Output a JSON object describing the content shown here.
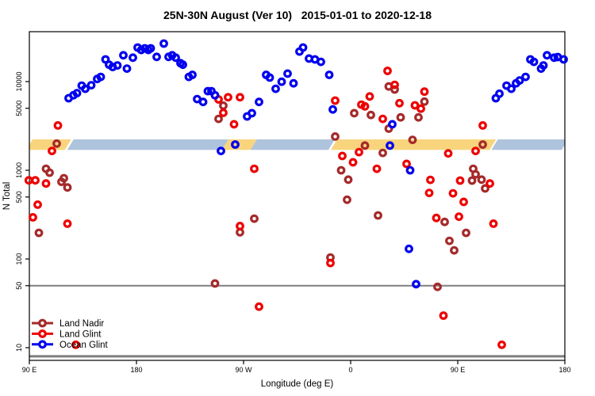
{
  "chart_data": {
    "type": "scatter",
    "title": "25N-30N August (Ver 10)   2015-01-01 to 2020-12-18",
    "xlabel": "Longitude (deg E)",
    "ylabel": "N Total",
    "x_axis": {
      "range": [
        90,
        540
      ],
      "ticks": [
        90,
        180,
        270,
        360,
        450,
        540
      ],
      "tick_labels": [
        "90 E",
        "180",
        "90 W",
        "0",
        "90 E",
        "180"
      ]
    },
    "y_axis": {
      "scale": "log10",
      "range": [
        7.5,
        36000
      ],
      "ticks": [
        10,
        50,
        100,
        500,
        1000,
        5000,
        10000
      ],
      "tick_labels": [
        "10",
        "50",
        "100",
        "500",
        "1000",
        "5000",
        "10000"
      ]
    },
    "reference_lines": [
      {
        "n": 50,
        "color": "#7e7e7e",
        "width": 2
      },
      {
        "n": 8,
        "color": "#7e7e7e",
        "width": 3
      }
    ],
    "highlight_band": {
      "n_low": 1700,
      "n_high": 2230,
      "segments": [
        {
          "from": 90,
          "to": 122.5,
          "color": "#F8D47C"
        },
        {
          "from": 124.5,
          "to": 254.5,
          "color": "#AEC3DC"
        },
        {
          "from": 254.5,
          "to": 278.5,
          "color": "#F8D47C"
        },
        {
          "from": 278.5,
          "to": 344,
          "color": "#AEC3DC"
        },
        {
          "from": 346,
          "to": 479.5,
          "color": "#F8D47C"
        },
        {
          "from": 481,
          "to": 540,
          "color": "#AEC3DC"
        }
      ]
    },
    "legend": {
      "position": "bottom-left",
      "entries": [
        "Land Nadir",
        "Land Glint",
        "Ocean Glint"
      ]
    },
    "series": [
      {
        "name": "Land Nadir",
        "color": "#A52A2A",
        "points": [
          [
            104,
            1040
          ],
          [
            107,
            940
          ],
          [
            119,
            815
          ],
          [
            117,
            740
          ],
          [
            122,
            640
          ],
          [
            98,
            197
          ],
          [
            113,
            2000
          ],
          [
            253,
            5350
          ],
          [
            249,
            3800
          ],
          [
            279,
            285
          ],
          [
            267,
            200
          ],
          [
            246,
            53
          ],
          [
            343,
            104
          ],
          [
            357,
            465
          ],
          [
            383,
            310
          ],
          [
            347,
            2400
          ],
          [
            363,
            4400
          ],
          [
            377,
            4200
          ],
          [
            392,
            8800
          ],
          [
            397,
            8150
          ],
          [
            402,
            3950
          ],
          [
            392,
            2950
          ],
          [
            372,
            1900
          ],
          [
            387,
            1570
          ],
          [
            422,
            5950
          ],
          [
            417,
            3950
          ],
          [
            412,
            2200
          ],
          [
            471,
            1950
          ],
          [
            463,
            1040
          ],
          [
            462,
            765
          ],
          [
            465,
            900
          ],
          [
            470,
            785
          ],
          [
            473,
            625
          ],
          [
            358,
            785
          ],
          [
            352,
            1000
          ],
          [
            439,
            262
          ],
          [
            457,
            197
          ],
          [
            443,
            160
          ],
          [
            447,
            125
          ],
          [
            433,
            48.5
          ]
        ]
      },
      {
        "name": "Land Glint",
        "color": "#EE0000",
        "points": [
          [
            114,
            3200
          ],
          [
            109,
            1650
          ],
          [
            104,
            710
          ],
          [
            95,
            770
          ],
          [
            89.5,
            770
          ],
          [
            97,
            410
          ],
          [
            93,
            295
          ],
          [
            122,
            250
          ],
          [
            129,
            10.8
          ],
          [
            249,
            6300
          ],
          [
            257,
            6650
          ],
          [
            267,
            6650
          ],
          [
            253,
            4450
          ],
          [
            262,
            3300
          ],
          [
            267,
            235
          ],
          [
            283,
            29
          ],
          [
            279,
            1040
          ],
          [
            347,
            6100
          ],
          [
            369,
            5500
          ],
          [
            372,
            5250
          ],
          [
            376,
            6800
          ],
          [
            387,
            3800
          ],
          [
            401,
            5700
          ],
          [
            391,
            13200
          ],
          [
            397,
            9200
          ],
          [
            422,
            7700
          ],
          [
            414,
            5400
          ],
          [
            419,
            4950
          ],
          [
            367,
            1600
          ],
          [
            471,
            3200
          ],
          [
            465,
            1650
          ],
          [
            442,
            1550
          ],
          [
            362,
            1230
          ],
          [
            353,
            1450
          ],
          [
            407,
            1180
          ],
          [
            382,
            1040
          ],
          [
            452,
            765
          ],
          [
            477,
            710
          ],
          [
            427,
            780
          ],
          [
            426,
            555
          ],
          [
            446,
            550
          ],
          [
            455,
            440
          ],
          [
            432,
            290
          ],
          [
            451,
            300
          ],
          [
            480,
            250
          ],
          [
            438,
            23
          ],
          [
            487,
            10.8
          ],
          [
            343,
            90
          ]
        ]
      },
      {
        "name": "Ocean Glint",
        "color": "#0000EE",
        "points": [
          [
            123,
            6500
          ],
          [
            127,
            7000
          ],
          [
            130,
            7400
          ],
          [
            134,
            9000
          ],
          [
            137,
            8300
          ],
          [
            142,
            9100
          ],
          [
            147,
            10700
          ],
          [
            150,
            11300
          ],
          [
            154,
            17800
          ],
          [
            157,
            15500
          ],
          [
            160,
            14600
          ],
          [
            164,
            15200
          ],
          [
            169,
            19800
          ],
          [
            172,
            14000
          ],
          [
            177,
            18600
          ],
          [
            181,
            24200
          ],
          [
            184,
            22700
          ],
          [
            187,
            23700
          ],
          [
            190,
            22700
          ],
          [
            192,
            23700
          ],
          [
            197,
            19000
          ],
          [
            203,
            26800
          ],
          [
            207,
            19000
          ],
          [
            210,
            19800
          ],
          [
            213,
            18600
          ],
          [
            217,
            16100
          ],
          [
            219,
            15500
          ],
          [
            224,
            11300
          ],
          [
            227,
            11900
          ],
          [
            231,
            6350
          ],
          [
            236,
            5900
          ],
          [
            240,
            7800
          ],
          [
            243,
            7800
          ],
          [
            246,
            7000
          ],
          [
            283,
            5900
          ],
          [
            277,
            4400
          ],
          [
            273,
            4050
          ],
          [
            263,
            1950
          ],
          [
            251,
            1650
          ],
          [
            289,
            11900
          ],
          [
            292,
            11100
          ],
          [
            297,
            8300
          ],
          [
            302,
            9950
          ],
          [
            307,
            12300
          ],
          [
            312,
            9550
          ],
          [
            317,
            21800
          ],
          [
            320,
            24200
          ],
          [
            325,
            18200
          ],
          [
            330,
            17800
          ],
          [
            335,
            16700
          ],
          [
            342,
            11900
          ],
          [
            345,
            4850
          ],
          [
            395,
            3300
          ],
          [
            393,
            1900
          ],
          [
            410,
            1000
          ],
          [
            409,
            130
          ],
          [
            415,
            52
          ],
          [
            482,
            6500
          ],
          [
            485,
            7300
          ],
          [
            491,
            9000
          ],
          [
            495,
            8300
          ],
          [
            499,
            9550
          ],
          [
            502,
            10300
          ],
          [
            507,
            11300
          ],
          [
            511,
            17800
          ],
          [
            514,
            16700
          ],
          [
            520,
            14000
          ],
          [
            522,
            15200
          ],
          [
            525,
            19800
          ],
          [
            531,
            18600
          ],
          [
            534,
            18900
          ],
          [
            539,
            17800
          ]
        ]
      }
    ]
  }
}
